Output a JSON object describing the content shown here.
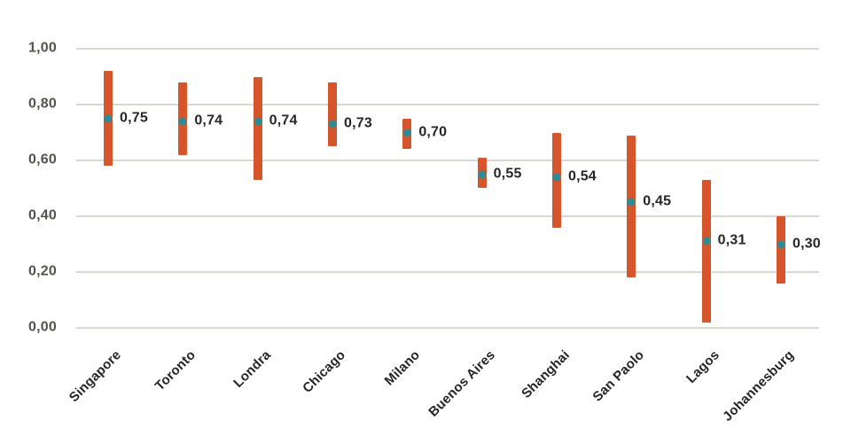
{
  "chart_data": {
    "type": "bar",
    "subtype": "floating-range-bars-with-point-markers",
    "title": "",
    "xlabel": "",
    "ylabel": "",
    "grid": true,
    "legend": false,
    "ylim": [
      0,
      1
    ],
    "categories": [
      "Singapore",
      "Toronto",
      "Londra",
      "Chicago",
      "Milano",
      "Buenos Aires",
      "Shanghai",
      "San Paolo",
      "Lagos",
      "Johannesburg"
    ],
    "series": [
      {
        "name": "range",
        "type": "floating-bar",
        "low": [
          0.58,
          0.62,
          0.53,
          0.65,
          0.64,
          0.5,
          0.36,
          0.18,
          0.02,
          0.16
        ],
        "high": [
          0.92,
          0.88,
          0.9,
          0.88,
          0.75,
          0.61,
          0.7,
          0.69,
          0.53,
          0.4
        ]
      },
      {
        "name": "score",
        "type": "scatter",
        "values": [
          0.75,
          0.74,
          0.74,
          0.73,
          0.7,
          0.55,
          0.54,
          0.45,
          0.31,
          0.3
        ],
        "labels": [
          "0,75",
          "0,74",
          "0,74",
          "0,73",
          "0,70",
          "0,55",
          "0,54",
          "0,45",
          "0,31",
          "0,30"
        ]
      }
    ],
    "yticks": [
      {
        "value": 1.0,
        "label": "1,00"
      },
      {
        "value": 0.8,
        "label": "0,80"
      },
      {
        "value": 0.6,
        "label": "0,60"
      },
      {
        "value": 0.4,
        "label": "0,40"
      },
      {
        "value": 0.2,
        "label": "0,20"
      },
      {
        "value": 0.0,
        "label": "0,00"
      }
    ],
    "colors": {
      "bar": "#d6552b",
      "marker": "#2e8b96",
      "gridline": "#dad7d0",
      "axis_text": "#55524e",
      "value_text": "#262626"
    }
  }
}
